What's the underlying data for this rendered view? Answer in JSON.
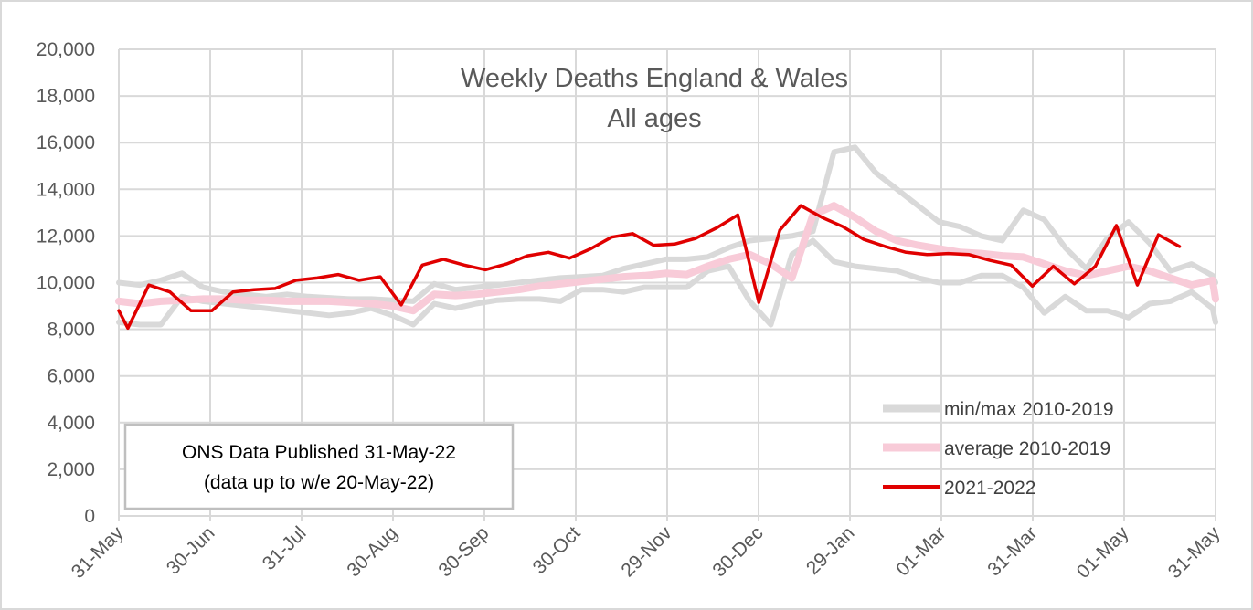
{
  "colors": {
    "minmax": "#d9d9d9",
    "average": "#f8cbd8",
    "current": "#e00000",
    "grid": "#d9d9d9",
    "text": "#595959"
  },
  "chart_data": {
    "type": "line",
    "title": "Weekly Deaths England & Wales",
    "subtitle": "All ages",
    "ylim": [
      0,
      20000
    ],
    "yticks": [
      "0",
      "2,000",
      "4,000",
      "6,000",
      "8,000",
      "10,000",
      "12,000",
      "14,000",
      "16,000",
      "18,000",
      "20,000"
    ],
    "xtick_labels": [
      "31-May",
      "30-Jun",
      "31-Jul",
      "30-Aug",
      "30-Sep",
      "30-Oct",
      "29-Nov",
      "30-Dec",
      "29-Jan",
      "01-Mar",
      "31-Mar",
      "01-May",
      "31-May"
    ],
    "x_range_days": [
      0,
      365
    ],
    "grid": true,
    "legend_position": "bottom-right",
    "series": [
      {
        "name": "min/max 2010-2019",
        "role": "max",
        "x": [
          0,
          7,
          14,
          21,
          28,
          35,
          42,
          49,
          56,
          63,
          70,
          77,
          84,
          91,
          98,
          105,
          112,
          119,
          126,
          133,
          140,
          147,
          154,
          161,
          168,
          175,
          182,
          189,
          196,
          203,
          210,
          217,
          224,
          231,
          238,
          245,
          252,
          259,
          266,
          273,
          280,
          287,
          294,
          301,
          308,
          315,
          322,
          329,
          336,
          343,
          350,
          357,
          364,
          365
        ],
        "values": [
          10000,
          9900,
          10100,
          10400,
          9800,
          9600,
          9500,
          9400,
          9500,
          9400,
          9350,
          9300,
          9300,
          9250,
          9200,
          9950,
          9700,
          9800,
          9900,
          10000,
          10100,
          10200,
          10250,
          10300,
          10600,
          10800,
          11000,
          11000,
          11100,
          11500,
          11800,
          11900,
          12000,
          12200,
          15600,
          15800,
          14700,
          14000,
          13300,
          12600,
          12400,
          12000,
          11800,
          13100,
          12700,
          11500,
          10600,
          11900,
          12600,
          11700,
          10500,
          10800,
          10300,
          10000
        ]
      },
      {
        "name": "min/max 2010-2019",
        "role": "min",
        "x": [
          0,
          7,
          14,
          21,
          28,
          35,
          42,
          49,
          56,
          63,
          70,
          77,
          84,
          91,
          98,
          105,
          112,
          119,
          126,
          133,
          140,
          147,
          154,
          161,
          168,
          175,
          182,
          189,
          196,
          203,
          210,
          217,
          224,
          231,
          238,
          245,
          252,
          259,
          266,
          273,
          280,
          287,
          294,
          301,
          308,
          315,
          322,
          329,
          336,
          343,
          350,
          357,
          364,
          365
        ],
        "values": [
          8300,
          8200,
          8200,
          9400,
          9200,
          9100,
          9000,
          8900,
          8800,
          8700,
          8600,
          8700,
          8900,
          8600,
          8200,
          9100,
          8900,
          9100,
          9250,
          9300,
          9300,
          9200,
          9700,
          9700,
          9600,
          9800,
          9800,
          9800,
          10500,
          10700,
          9200,
          8200,
          11200,
          11800,
          10900,
          10700,
          10600,
          10500,
          10200,
          10000,
          10000,
          10300,
          10300,
          9800,
          8700,
          9400,
          8800,
          8800,
          8500,
          9100,
          9200,
          9600,
          8900,
          8300
        ]
      },
      {
        "name": "average 2010-2019",
        "x": [
          0,
          7,
          14,
          21,
          28,
          35,
          42,
          49,
          56,
          63,
          70,
          77,
          84,
          91,
          98,
          105,
          112,
          119,
          126,
          133,
          140,
          147,
          154,
          161,
          168,
          175,
          182,
          189,
          196,
          203,
          210,
          217,
          224,
          231,
          238,
          245,
          252,
          259,
          266,
          273,
          280,
          287,
          294,
          301,
          308,
          315,
          322,
          329,
          336,
          343,
          350,
          357,
          364,
          365
        ],
        "values": [
          9200,
          9100,
          9200,
          9250,
          9300,
          9300,
          9250,
          9250,
          9200,
          9200,
          9200,
          9150,
          9100,
          9000,
          8800,
          9500,
          9450,
          9500,
          9600,
          9700,
          9850,
          9950,
          10050,
          10150,
          10250,
          10300,
          10400,
          10350,
          10700,
          11000,
          11200,
          10800,
          10200,
          12900,
          13300,
          12800,
          12200,
          11800,
          11600,
          11450,
          11300,
          11250,
          11150,
          11100,
          10800,
          10500,
          10300,
          10500,
          10700,
          10500,
          10200,
          9900,
          10100,
          9300
        ]
      },
      {
        "name": "2021-2022",
        "x": [
          0,
          3,
          10,
          17,
          24,
          31,
          38,
          45,
          52,
          59,
          66,
          73,
          80,
          87,
          94,
          101,
          108,
          115,
          122,
          129,
          136,
          143,
          150,
          157,
          164,
          171,
          178,
          185,
          192,
          199,
          206,
          213,
          220,
          227,
          234,
          241,
          248,
          255,
          262,
          269,
          276,
          283,
          290,
          297,
          304,
          311,
          318,
          325,
          332,
          339,
          346,
          353
        ],
        "values": [
          8800,
          8050,
          9900,
          9600,
          8800,
          8800,
          9600,
          9700,
          9750,
          10100,
          10200,
          10350,
          10100,
          10250,
          9050,
          10750,
          11000,
          10750,
          10550,
          10800,
          11150,
          11300,
          11050,
          11450,
          11950,
          12100,
          11600,
          11650,
          11900,
          12350,
          12900,
          9150,
          12250,
          13300,
          12800,
          12400,
          11850,
          11550,
          11300,
          11200,
          11250,
          11200,
          10950,
          10750,
          9850,
          10700,
          9950,
          10700,
          12450,
          9900,
          12050,
          11550
        ]
      }
    ]
  },
  "legend": [
    {
      "label": "min/max 2010-2019",
      "color_key": "minmax"
    },
    {
      "label": "average 2010-2019",
      "color_key": "average"
    },
    {
      "label": "2021-2022",
      "color_key": "current"
    }
  ],
  "note": {
    "line1": "ONS Data Published 31-May-22",
    "line2": "(data up to w/e 20-May-22)"
  }
}
